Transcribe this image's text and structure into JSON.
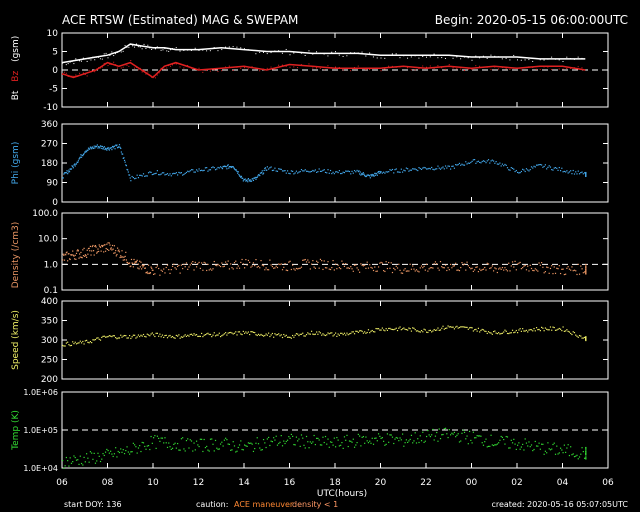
{
  "header": {
    "title": "ACE RTSW (Estimated) MAG & SWEPAM",
    "begin": "Begin: 2020-05-15 06:00:00UTC"
  },
  "footer": {
    "start_doy": "start DOY: 136",
    "caution_label": "caution:",
    "caution_maneuver": "ACE maneuver",
    "caution_density": "density < 1",
    "created": "created: 2020-05-16 05:07:05UTC"
  },
  "x_axis": {
    "label": "UTC(hours)",
    "ticks": [
      "06",
      "08",
      "10",
      "12",
      "14",
      "16",
      "18",
      "20",
      "22",
      "00",
      "02",
      "04",
      "06"
    ],
    "range_hours": [
      0,
      24
    ]
  },
  "colors": {
    "bt": "#ffffff",
    "bz": "#e02020",
    "phi": "#44aaee",
    "density": "#ee9966",
    "speed": "#eeee66",
    "temp": "#33dd33",
    "caution_maneuver": "#ff8833",
    "caution_density": "#ff9966"
  },
  "chart_data": [
    {
      "type": "line",
      "panel": "mag_b",
      "ylabel_parts": [
        "Bt",
        "Bz",
        "(gsm)"
      ],
      "yticks": [
        "10",
        "5",
        "0",
        "-5",
        "-10"
      ],
      "ylim": [
        -10,
        10
      ],
      "dashed_at": [
        0
      ],
      "series": [
        {
          "name": "Bt",
          "x": [
            0,
            0.5,
            1,
            1.5,
            2,
            2.5,
            3,
            3.5,
            4,
            4.5,
            5,
            6,
            7,
            8,
            9,
            10,
            11,
            12,
            13,
            14,
            15,
            16,
            17,
            18,
            19,
            20,
            21,
            22,
            23
          ],
          "values": [
            2,
            2.5,
            3,
            3.5,
            4,
            5,
            7,
            6.5,
            6,
            6,
            5.5,
            5.5,
            6,
            5.5,
            5,
            5,
            4.5,
            4.5,
            4.5,
            4,
            4,
            4,
            4,
            3.5,
            3.5,
            3.5,
            3,
            3,
            3
          ]
        },
        {
          "name": "Bz",
          "x": [
            0,
            0.5,
            1,
            1.5,
            2,
            2.5,
            3,
            3.5,
            4,
            4.5,
            5,
            6,
            7,
            8,
            9,
            10,
            11,
            12,
            13,
            14,
            15,
            16,
            17,
            18,
            19,
            20,
            21,
            22,
            23
          ],
          "values": [
            -1,
            -2,
            -1,
            0,
            2,
            1,
            2,
            0,
            -2,
            1,
            2,
            0,
            0.5,
            1,
            0,
            1.5,
            1,
            0.5,
            0.5,
            0.5,
            1,
            0.5,
            1,
            0.5,
            1,
            0.5,
            1,
            1,
            0
          ]
        }
      ]
    },
    {
      "type": "scatter",
      "panel": "phi",
      "ylabel": "Phi (gsm)",
      "yticks": [
        "360",
        "270",
        "180",
        "90",
        "0"
      ],
      "ylim": [
        0,
        360
      ],
      "series": [
        {
          "name": "Phi",
          "x": [
            0,
            0.5,
            1,
            1.5,
            2,
            2.5,
            3,
            4,
            5,
            6,
            7,
            7.5,
            8,
            8.5,
            9,
            10,
            11,
            12,
            13,
            13.5,
            14,
            15,
            16,
            17,
            18,
            19,
            20,
            21,
            22,
            23
          ],
          "values": [
            120,
            170,
            240,
            260,
            250,
            260,
            110,
            140,
            130,
            150,
            160,
            170,
            100,
            110,
            160,
            140,
            150,
            140,
            140,
            120,
            140,
            150,
            160,
            160,
            190,
            190,
            140,
            170,
            150,
            130
          ]
        }
      ]
    },
    {
      "type": "scatter",
      "panel": "density",
      "ylabel": "Density (/cm3)",
      "yscale": "log",
      "yticks": [
        "100.0",
        "10.0",
        "1.0",
        "0.1"
      ],
      "ylim": [
        0.1,
        100
      ],
      "dashed_at": [
        1
      ],
      "series": [
        {
          "name": "Density",
          "x": [
            0,
            0.5,
            1,
            1.5,
            2,
            2.5,
            3,
            3.5,
            4,
            5,
            6,
            7,
            8,
            9,
            10,
            11,
            12,
            13,
            14,
            15,
            16,
            17,
            18,
            19,
            20,
            21,
            22,
            23
          ],
          "values": [
            1.8,
            2.5,
            3,
            4,
            5,
            3,
            1.2,
            0.8,
            0.6,
            0.7,
            1.0,
            0.8,
            1.2,
            1.0,
            0.9,
            1.1,
            1.0,
            0.8,
            0.9,
            0.7,
            0.8,
            0.9,
            0.8,
            0.7,
            0.9,
            0.8,
            0.6,
            0.7
          ]
        }
      ]
    },
    {
      "type": "scatter",
      "panel": "speed",
      "ylabel": "Speed (km/s)",
      "yticks": [
        "400",
        "350",
        "300",
        "250",
        "200"
      ],
      "ylim": [
        200,
        400
      ],
      "series": [
        {
          "name": "Speed",
          "x": [
            0,
            1,
            2,
            3,
            4,
            5,
            6,
            7,
            8,
            9,
            10,
            11,
            12,
            13,
            14,
            15,
            16,
            17,
            18,
            19,
            20,
            21,
            22,
            23
          ],
          "values": [
            290,
            295,
            310,
            310,
            315,
            310,
            315,
            315,
            320,
            315,
            310,
            320,
            315,
            320,
            330,
            330,
            325,
            335,
            330,
            320,
            325,
            330,
            330,
            305
          ]
        }
      ]
    },
    {
      "type": "scatter",
      "panel": "temp",
      "ylabel": "Temp (K)",
      "yscale": "log",
      "yticks": [
        "1.0E+06",
        "1.0E+05",
        "1.0E+04"
      ],
      "ylim": [
        10000,
        1000000
      ],
      "dashed_at": [
        100000
      ],
      "series": [
        {
          "name": "Temp",
          "x": [
            0,
            1,
            2,
            3,
            4,
            5,
            6,
            7,
            8,
            9,
            10,
            11,
            12,
            13,
            14,
            15,
            16,
            17,
            18,
            19,
            20,
            21,
            22,
            23
          ],
          "values": [
            15000,
            18000,
            22000,
            30000,
            50000,
            45000,
            40000,
            45000,
            35000,
            50000,
            55000,
            50000,
            45000,
            55000,
            60000,
            55000,
            70000,
            80000,
            65000,
            50000,
            45000,
            35000,
            30000,
            25000
          ]
        }
      ]
    }
  ]
}
